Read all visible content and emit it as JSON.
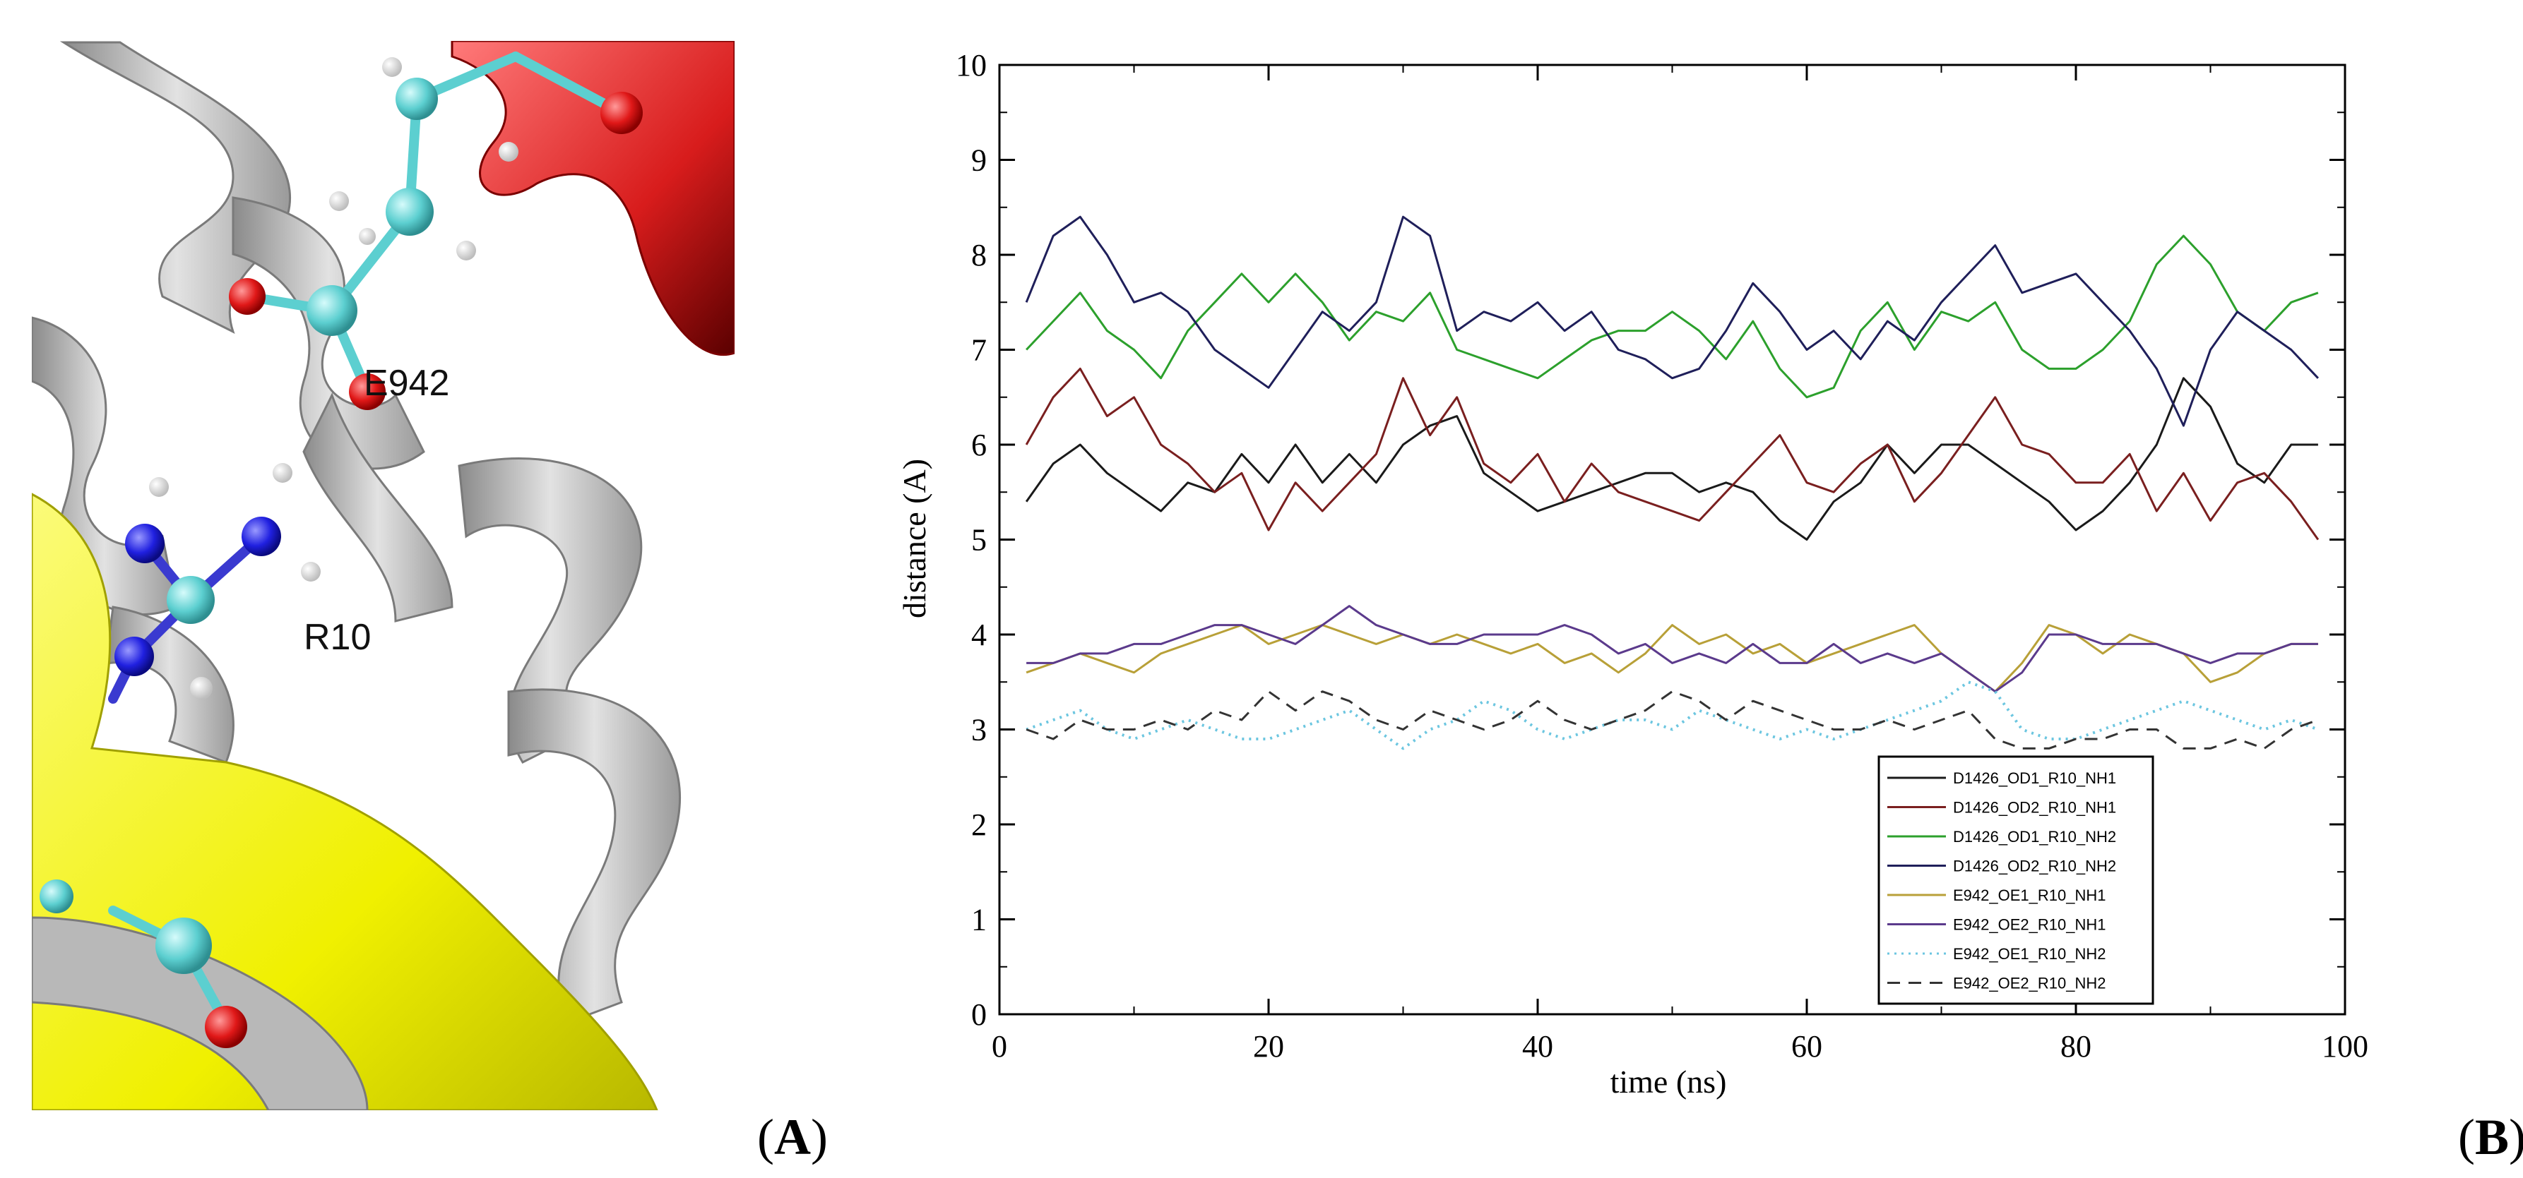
{
  "panel_a": {
    "label_open": "(",
    "label_letter": "A",
    "label_close": ")",
    "residue_labels": [
      "E942",
      "R10"
    ]
  },
  "panel_b": {
    "label_open": "(",
    "label_letter": "B",
    "label_close": ")"
  },
  "chart_data": {
    "type": "line",
    "title": "",
    "xlabel": "time (ns)",
    "ylabel": "distance (A)",
    "xlim": [
      0,
      100
    ],
    "ylim": [
      0,
      10
    ],
    "xticks": [
      0,
      20,
      40,
      60,
      80,
      100
    ],
    "yticks": [
      0,
      1,
      2,
      3,
      4,
      5,
      6,
      7,
      8,
      9,
      10
    ],
    "grid": false,
    "legend_position": "bottom-right",
    "x": [
      2,
      4,
      6,
      8,
      10,
      12,
      14,
      16,
      18,
      20,
      22,
      24,
      26,
      28,
      30,
      32,
      34,
      36,
      38,
      40,
      42,
      44,
      46,
      48,
      50,
      52,
      54,
      56,
      58,
      60,
      62,
      64,
      66,
      68,
      70,
      72,
      74,
      76,
      78,
      80,
      82,
      84,
      86,
      88,
      90,
      92,
      94,
      96,
      98
    ],
    "series": [
      {
        "name": "D1426_OD1_R10_NH1",
        "color": "#1a1a1a",
        "dash": "solid",
        "values": [
          5.4,
          5.8,
          6.0,
          5.7,
          5.5,
          5.3,
          5.6,
          5.5,
          5.9,
          5.6,
          6.0,
          5.6,
          5.9,
          5.6,
          6.0,
          6.2,
          6.3,
          5.7,
          5.5,
          5.3,
          5.4,
          5.5,
          5.6,
          5.7,
          5.7,
          5.5,
          5.6,
          5.5,
          5.2,
          5.0,
          5.4,
          5.6,
          6.0,
          5.7,
          6.0,
          6.0,
          5.8,
          5.6,
          5.4,
          5.1,
          5.3,
          5.6,
          6.0,
          6.7,
          6.4,
          5.8,
          5.6,
          6.0,
          6.0
        ]
      },
      {
        "name": "D1426_OD2_R10_NH1",
        "color": "#7a1f1f",
        "dash": "solid",
        "values": [
          6.0,
          6.5,
          6.8,
          6.3,
          6.5,
          6.0,
          5.8,
          5.5,
          5.7,
          5.1,
          5.6,
          5.3,
          5.6,
          5.9,
          6.7,
          6.1,
          6.5,
          5.8,
          5.6,
          5.9,
          5.4,
          5.8,
          5.5,
          5.4,
          5.3,
          5.2,
          5.5,
          5.8,
          6.1,
          5.6,
          5.5,
          5.8,
          6.0,
          5.4,
          5.7,
          6.1,
          6.5,
          6.0,
          5.9,
          5.6,
          5.6,
          5.9,
          5.3,
          5.7,
          5.2,
          5.6,
          5.7,
          5.4,
          5.0
        ]
      },
      {
        "name": "D1426_OD1_R10_NH2",
        "color": "#2ca02c",
        "dash": "solid",
        "values": [
          7.0,
          7.3,
          7.6,
          7.2,
          7.0,
          6.7,
          7.2,
          7.5,
          7.8,
          7.5,
          7.8,
          7.5,
          7.1,
          7.4,
          7.3,
          7.6,
          7.0,
          6.9,
          6.8,
          6.7,
          6.9,
          7.1,
          7.2,
          7.2,
          7.4,
          7.2,
          6.9,
          7.3,
          6.8,
          6.5,
          6.6,
          7.2,
          7.5,
          7.0,
          7.4,
          7.3,
          7.5,
          7.0,
          6.8,
          6.8,
          7.0,
          7.3,
          7.9,
          8.2,
          7.9,
          7.4,
          7.2,
          7.5,
          7.6
        ]
      },
      {
        "name": "D1426_OD2_R10_NH2",
        "color": "#1f1f5a",
        "dash": "solid",
        "values": [
          7.5,
          8.2,
          8.4,
          8.0,
          7.5,
          7.6,
          7.4,
          7.0,
          6.8,
          6.6,
          7.0,
          7.4,
          7.2,
          7.5,
          8.4,
          8.2,
          7.2,
          7.4,
          7.3,
          7.5,
          7.2,
          7.4,
          7.0,
          6.9,
          6.7,
          6.8,
          7.2,
          7.7,
          7.4,
          7.0,
          7.2,
          6.9,
          7.3,
          7.1,
          7.5,
          7.8,
          8.1,
          7.6,
          7.7,
          7.8,
          7.5,
          7.2,
          6.8,
          6.2,
          7.0,
          7.4,
          7.2,
          7.0,
          6.7
        ]
      },
      {
        "name": "E942_OE1_R10_NH1",
        "color": "#b8a038",
        "dash": "solid",
        "values": [
          3.6,
          3.7,
          3.8,
          3.7,
          3.6,
          3.8,
          3.9,
          4.0,
          4.1,
          3.9,
          4.0,
          4.1,
          4.0,
          3.9,
          4.0,
          3.9,
          4.0,
          3.9,
          3.8,
          3.9,
          3.7,
          3.8,
          3.6,
          3.8,
          4.1,
          3.9,
          4.0,
          3.8,
          3.9,
          3.7,
          3.8,
          3.9,
          4.0,
          4.1,
          3.8,
          3.6,
          3.4,
          3.7,
          4.1,
          4.0,
          3.8,
          4.0,
          3.9,
          3.8,
          3.5,
          3.6,
          3.8,
          3.9,
          3.9
        ]
      },
      {
        "name": "E942_OE2_R10_NH1",
        "color": "#5b3a8c",
        "dash": "solid",
        "values": [
          3.7,
          3.7,
          3.8,
          3.8,
          3.9,
          3.9,
          4.0,
          4.1,
          4.1,
          4.0,
          3.9,
          4.1,
          4.3,
          4.1,
          4.0,
          3.9,
          3.9,
          4.0,
          4.0,
          4.0,
          4.1,
          4.0,
          3.8,
          3.9,
          3.7,
          3.8,
          3.7,
          3.9,
          3.7,
          3.7,
          3.9,
          3.7,
          3.8,
          3.7,
          3.8,
          3.6,
          3.4,
          3.6,
          4.0,
          4.0,
          3.9,
          3.9,
          3.9,
          3.8,
          3.7,
          3.8,
          3.8,
          3.9,
          3.9
        ]
      },
      {
        "name": "E942_OE1_R10_NH2",
        "color": "#6cc6e0",
        "dash": "dotted",
        "values": [
          3.0,
          3.1,
          3.2,
          3.0,
          2.9,
          3.0,
          3.1,
          3.0,
          2.9,
          2.9,
          3.0,
          3.1,
          3.2,
          3.0,
          2.8,
          3.0,
          3.1,
          3.3,
          3.2,
          3.0,
          2.9,
          3.0,
          3.1,
          3.1,
          3.0,
          3.2,
          3.1,
          3.0,
          2.9,
          3.0,
          2.9,
          3.0,
          3.1,
          3.2,
          3.3,
          3.5,
          3.4,
          3.0,
          2.9,
          2.9,
          3.0,
          3.1,
          3.2,
          3.3,
          3.2,
          3.1,
          3.0,
          3.1,
          3.0
        ]
      },
      {
        "name": "E942_OE2_R10_NH2",
        "color": "#333333",
        "dash": "dashed",
        "values": [
          3.0,
          2.9,
          3.1,
          3.0,
          3.0,
          3.1,
          3.0,
          3.2,
          3.1,
          3.4,
          3.2,
          3.4,
          3.3,
          3.1,
          3.0,
          3.2,
          3.1,
          3.0,
          3.1,
          3.3,
          3.1,
          3.0,
          3.1,
          3.2,
          3.4,
          3.3,
          3.1,
          3.3,
          3.2,
          3.1,
          3.0,
          3.0,
          3.1,
          3.0,
          3.1,
          3.2,
          2.9,
          2.8,
          2.8,
          2.9,
          2.9,
          3.0,
          3.0,
          2.8,
          2.8,
          2.9,
          2.8,
          3.0,
          3.1
        ]
      }
    ]
  }
}
